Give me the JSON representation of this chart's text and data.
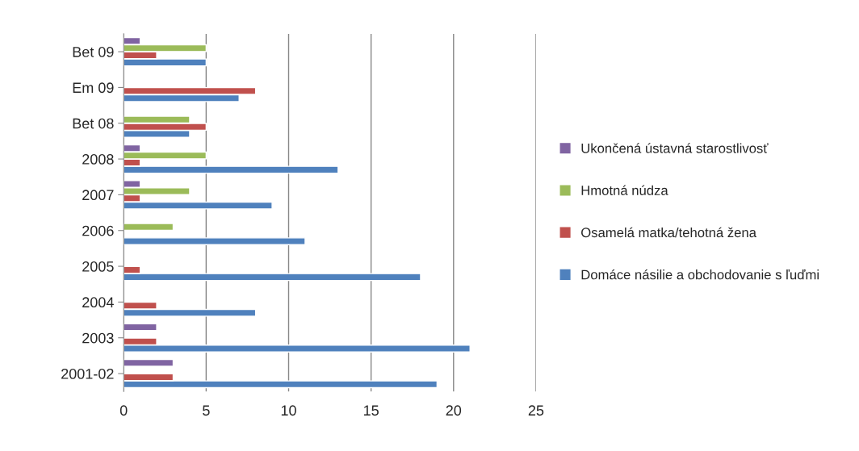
{
  "chart_data": {
    "type": "bar",
    "orientation": "horizontal",
    "categories": [
      "Bet 09",
      "Em 09",
      "Bet 08",
      "2008",
      "2007",
      "2006",
      "2005",
      "2004",
      "2003",
      "2001-02"
    ],
    "series": [
      {
        "name": "Domáce násilie a obchodovanie s ľuďmi",
        "color": "#4f81bd",
        "values": [
          5,
          7,
          4,
          13,
          9,
          11,
          18,
          8,
          21,
          19
        ]
      },
      {
        "name": "Osamelá matka/tehotná žena",
        "color": "#c0504d",
        "values": [
          2,
          8,
          5,
          1,
          1,
          null,
          1,
          2,
          2,
          3
        ]
      },
      {
        "name": "Hmotná núdza",
        "color": "#9bbb59",
        "values": [
          5,
          null,
          4,
          5,
          4,
          3,
          null,
          null,
          null,
          null
        ]
      },
      {
        "name": "Ukončená ústavná starostlivosť",
        "color": "#8064a2",
        "values": [
          1,
          null,
          null,
          1,
          1,
          null,
          null,
          null,
          2,
          3
        ]
      }
    ],
    "xlim": [
      0,
      25
    ],
    "xticks": [
      0,
      5,
      10,
      15,
      20,
      25
    ],
    "grid": "x",
    "legend": "right"
  }
}
